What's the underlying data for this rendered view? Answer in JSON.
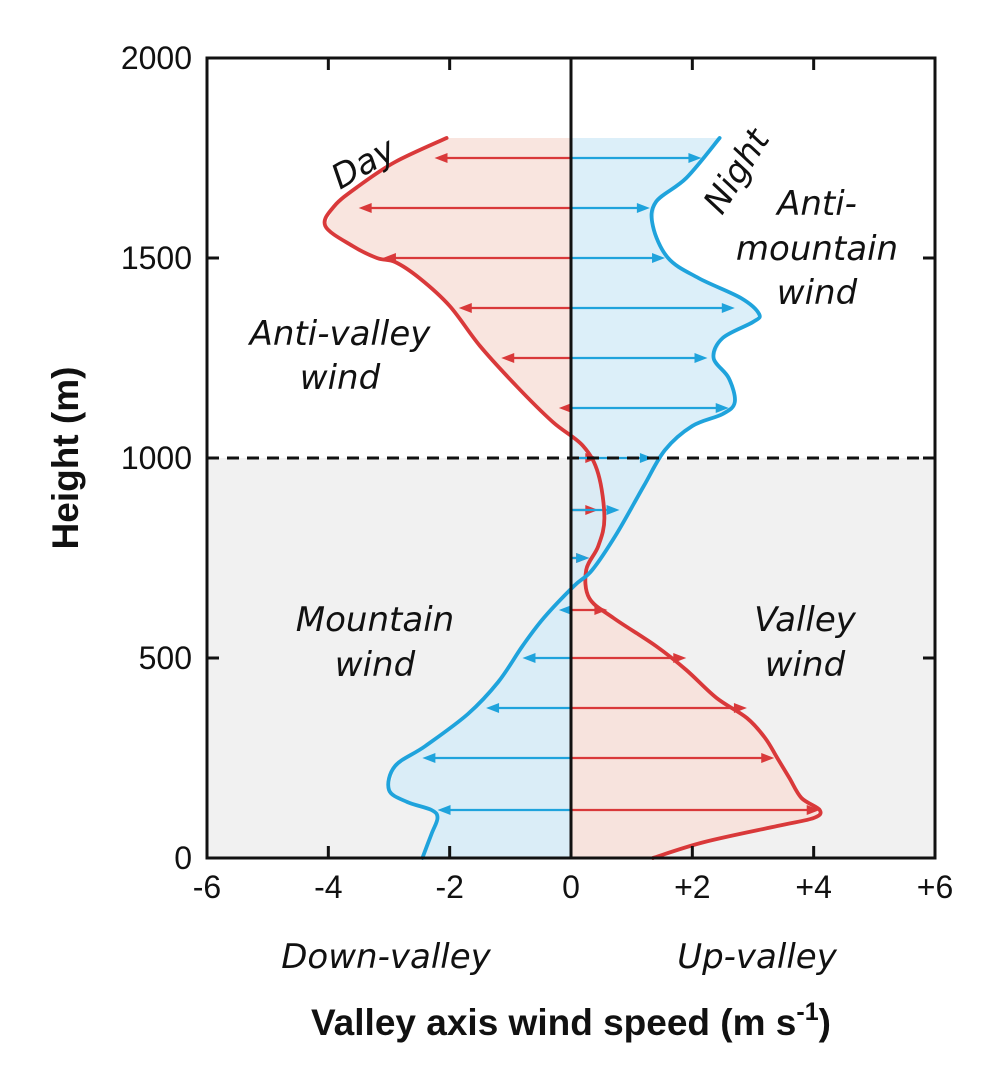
{
  "chart_data": {
    "type": "line",
    "xlabel": "Valley axis wind speed (m s",
    "xlabel_superscript": "-1",
    "xlabel_close": ")",
    "ylabel": "Height (m)",
    "xlim": [
      -6,
      6
    ],
    "ylim": [
      0,
      2000
    ],
    "x_ticks": [
      -6,
      -4,
      -2,
      0,
      2,
      4,
      6
    ],
    "x_tick_labels": [
      "-6",
      "-4",
      "-2",
      "0",
      "+2",
      "+4",
      "+6"
    ],
    "y_ticks": [
      0,
      500,
      1000,
      1500,
      2000
    ],
    "y_tick_labels": [
      "0",
      "500",
      "1000",
      "1500",
      "2000"
    ],
    "x_direction_labels": {
      "negative": "Down-valley",
      "positive": "Up-valley"
    },
    "boundary_height": 1000,
    "colors": {
      "day": "#d9393a",
      "night": "#1fa3dc",
      "day_fill": "#f8e1d9",
      "night_fill": "#d6ecf8",
      "lower_zone": "#f1f1f1"
    },
    "series": [
      {
        "name": "Day",
        "points": [
          [
            1.35,
            0
          ],
          [
            2.2,
            40
          ],
          [
            3.4,
            80
          ],
          [
            4.0,
            100
          ],
          [
            4.1,
            120
          ],
          [
            3.8,
            150
          ],
          [
            3.6,
            200
          ],
          [
            3.4,
            250
          ],
          [
            3.2,
            300
          ],
          [
            2.9,
            350
          ],
          [
            2.4,
            400
          ],
          [
            1.9,
            470
          ],
          [
            1.4,
            530
          ],
          [
            0.7,
            600
          ],
          [
            0.3,
            650
          ],
          [
            0.25,
            720
          ],
          [
            0.45,
            780
          ],
          [
            0.55,
            850
          ],
          [
            0.45,
            960
          ],
          [
            0.2,
            1030
          ],
          [
            -0.3,
            1090
          ],
          [
            -0.9,
            1180
          ],
          [
            -1.5,
            1280
          ],
          [
            -2.0,
            1380
          ],
          [
            -2.5,
            1450
          ],
          [
            -2.9,
            1490
          ],
          [
            -3.2,
            1500
          ],
          [
            -3.6,
            1530
          ],
          [
            -4.05,
            1580
          ],
          [
            -3.9,
            1630
          ],
          [
            -3.5,
            1680
          ],
          [
            -2.9,
            1740
          ],
          [
            -2.05,
            1800
          ]
        ],
        "arrows": [
          [
            120,
            4.1
          ],
          [
            250,
            3.35
          ],
          [
            375,
            2.9
          ],
          [
            500,
            1.9
          ],
          [
            620,
            0.6
          ],
          [
            750,
            0.3
          ],
          [
            870,
            0.45
          ],
          [
            1000,
            0.45
          ],
          [
            1125,
            -0.2
          ],
          [
            1250,
            -1.15
          ],
          [
            1375,
            -1.85
          ],
          [
            1500,
            -3.1
          ],
          [
            1625,
            -3.5
          ],
          [
            1750,
            -2.25
          ]
        ],
        "label": "Day"
      },
      {
        "name": "Night",
        "points": [
          [
            -2.45,
            0
          ],
          [
            -2.3,
            60
          ],
          [
            -2.2,
            100
          ],
          [
            -2.3,
            120
          ],
          [
            -2.7,
            140
          ],
          [
            -3.0,
            170
          ],
          [
            -2.9,
            230
          ],
          [
            -2.4,
            280
          ],
          [
            -1.7,
            360
          ],
          [
            -1.2,
            440
          ],
          [
            -0.8,
            530
          ],
          [
            -0.45,
            600
          ],
          [
            0.05,
            680
          ],
          [
            0.35,
            720
          ],
          [
            0.75,
            810
          ],
          [
            1.2,
            930
          ],
          [
            1.55,
            1020
          ],
          [
            2.0,
            1080
          ],
          [
            2.5,
            1110
          ],
          [
            2.7,
            1140
          ],
          [
            2.6,
            1200
          ],
          [
            2.35,
            1250
          ],
          [
            2.5,
            1300
          ],
          [
            3.0,
            1340
          ],
          [
            3.1,
            1360
          ],
          [
            2.8,
            1400
          ],
          [
            2.1,
            1450
          ],
          [
            1.6,
            1500
          ],
          [
            1.35,
            1580
          ],
          [
            1.4,
            1640
          ],
          [
            1.9,
            1700
          ],
          [
            2.45,
            1800
          ]
        ],
        "arrows": [
          [
            120,
            -2.2
          ],
          [
            250,
            -2.45
          ],
          [
            375,
            -1.4
          ],
          [
            500,
            -0.8
          ],
          [
            620,
            -0.2
          ],
          [
            750,
            0.3
          ],
          [
            870,
            0.8
          ],
          [
            1000,
            1.35
          ],
          [
            1125,
            2.6
          ],
          [
            1250,
            2.25
          ],
          [
            1375,
            2.7
          ],
          [
            1500,
            1.55
          ],
          [
            1625,
            1.3
          ],
          [
            1750,
            2.15
          ]
        ],
        "label": "Night"
      }
    ],
    "annotations": {
      "anti_valley": [
        "Anti-valley",
        "wind"
      ],
      "anti_mountain": [
        "Anti-",
        "mountain",
        "wind"
      ],
      "mountain": [
        "Mountain",
        "wind"
      ],
      "valley": [
        "Valley",
        "wind"
      ]
    }
  }
}
